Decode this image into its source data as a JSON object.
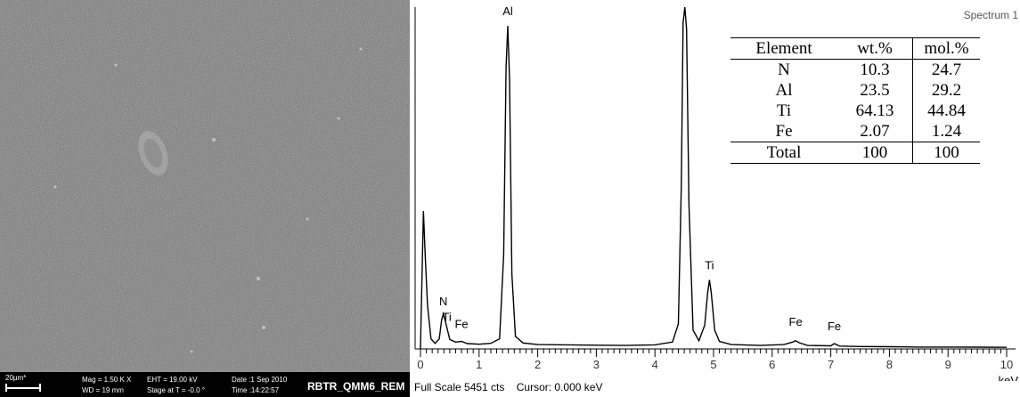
{
  "sem": {
    "scale_label": "20µm*",
    "mag": "Mag =  1.50 K X",
    "wd": "WD =  19 mm",
    "eht": "EHT = 19.00 kV",
    "stage": "Stage at T =  -0.0 °",
    "date": "Date :1 Sep 2010",
    "time": "Time :14:22:57",
    "sample_id": "RBTR_QMM6_REM"
  },
  "eds": {
    "spectrum_label": "Spectrum 1",
    "full_scale": "Full Scale 5451 cts",
    "cursor": "Cursor: 0.000 keV",
    "peak_labels": [
      {
        "text": "N",
        "x": 0.39,
        "y": 300
      },
      {
        "text": "Ti",
        "x": 0.45,
        "y": 280
      },
      {
        "text": "Fe",
        "x": 0.7,
        "y": 160
      },
      {
        "text": "Al",
        "x": 1.49,
        "y": 5150
      },
      {
        "text": "Ti",
        "x": 4.51,
        "y": 5451
      },
      {
        "text": "Ti",
        "x": 4.93,
        "y": 1100
      },
      {
        "text": "Fe",
        "x": 6.4,
        "y": 200
      },
      {
        "text": "Fe",
        "x": 7.06,
        "y": 130
      }
    ],
    "table": {
      "headers": [
        "Element",
        "wt.%",
        "mol.%"
      ],
      "rows": [
        {
          "element": "N",
          "wt": "10.3",
          "mol": "24.7"
        },
        {
          "element": "Al",
          "wt": "23.5",
          "mol": "29.2"
        },
        {
          "element": "Ti",
          "wt": "64.13",
          "mol": "44.84"
        },
        {
          "element": "Fe",
          "wt": "2.07",
          "mol": "1.24"
        },
        {
          "element": "Total",
          "wt": "100",
          "mol": "100"
        }
      ]
    }
  },
  "chart_data": {
    "type": "line",
    "title": "Spectrum 1",
    "xlabel": "keV",
    "ylabel": "",
    "xlim": [
      0,
      10
    ],
    "ylim": [
      0,
      5451
    ],
    "xticks": [
      "0",
      "1",
      "2",
      "3",
      "4",
      "5",
      "6",
      "7",
      "8",
      "9",
      "10"
    ],
    "grid": false,
    "series": [
      {
        "x": [
          0.0,
          0.05,
          0.08,
          0.12,
          0.18,
          0.25,
          0.32,
          0.36,
          0.39,
          0.43,
          0.5,
          0.6,
          0.7,
          0.8,
          1.0,
          1.2,
          1.35,
          1.42,
          1.46,
          1.49,
          1.52,
          1.56,
          1.62,
          1.75,
          2.0,
          2.5,
          3.0,
          3.5,
          4.0,
          4.3,
          4.4,
          4.45,
          4.48,
          4.51,
          4.54,
          4.58,
          4.65,
          4.75,
          4.85,
          4.9,
          4.93,
          4.96,
          5.02,
          5.1,
          5.3,
          5.8,
          6.2,
          6.35,
          6.4,
          6.46,
          6.6,
          7.0,
          7.06,
          7.15,
          7.5,
          8.0,
          8.5,
          9.0,
          9.5,
          10.0
        ],
        "y": [
          0,
          2200,
          1500,
          700,
          160,
          90,
          160,
          460,
          560,
          420,
          150,
          110,
          120,
          85,
          75,
          90,
          160,
          1500,
          4500,
          5150,
          4300,
          1200,
          200,
          95,
          70,
          65,
          60,
          55,
          65,
          110,
          400,
          2600,
          5200,
          5451,
          5100,
          2300,
          300,
          130,
          380,
          900,
          1100,
          900,
          300,
          120,
          70,
          55,
          70,
          110,
          130,
          100,
          55,
          50,
          85,
          45,
          38,
          35,
          30,
          30,
          28,
          25
        ]
      }
    ]
  }
}
